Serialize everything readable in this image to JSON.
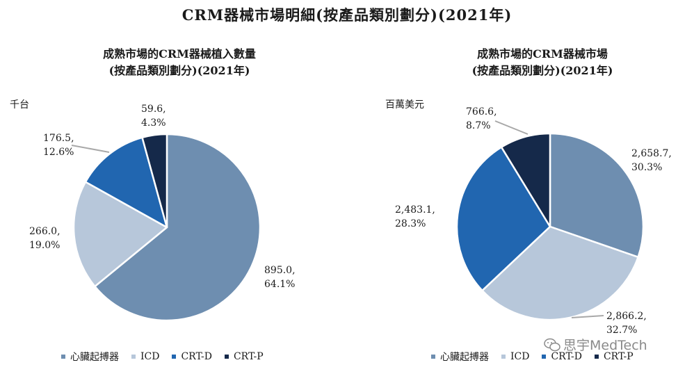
{
  "title": "CRM器械市場明細(按產品類別劃分)(2021年)",
  "chart_data": [
    {
      "type": "pie",
      "title_line1": "成熟市場的CRM器械植入數量",
      "title_line2": "(按產品類別劃分)(2021年)",
      "unit": "千台",
      "slices": [
        {
          "name": "心臟起搏器",
          "value": 895.0,
          "value_label": "895.0,",
          "pct_label": "64.1%",
          "color": "#6e8eb0"
        },
        {
          "name": "ICD",
          "value": 266.0,
          "value_label": "266.0,",
          "pct_label": "19.0%",
          "color": "#b7c7da"
        },
        {
          "name": "CRT-D",
          "value": 176.5,
          "value_label": "176.5,",
          "pct_label": "12.6%",
          "color": "#2166b0"
        },
        {
          "name": "CRT-P",
          "value": 59.6,
          "value_label": "59.6,",
          "pct_label": "4.3%",
          "color": "#15294a"
        }
      ]
    },
    {
      "type": "pie",
      "title_line1": "成熟市場的CRM器械市場",
      "title_line2": "(按產品類別劃分)(2021年)",
      "unit": "百萬美元",
      "slices": [
        {
          "name": "心臟起搏器",
          "value": 2658.7,
          "value_label": "2,658.7,",
          "pct_label": "30.3%",
          "color": "#6e8eb0"
        },
        {
          "name": "ICD",
          "value": 2866.2,
          "value_label": "2,866.2,",
          "pct_label": "32.7%",
          "color": "#b7c7da"
        },
        {
          "name": "CRT-D",
          "value": 2483.1,
          "value_label": "2,483.1,",
          "pct_label": "28.3%",
          "color": "#2166b0"
        },
        {
          "name": "CRT-P",
          "value": 766.6,
          "value_label": "766.6,",
          "pct_label": "8.7%",
          "color": "#15294a"
        }
      ]
    }
  ],
  "legend": [
    "心臟起搏器",
    "ICD",
    "CRT-D",
    "CRT-P"
  ],
  "watermark": "思宇MedTech"
}
